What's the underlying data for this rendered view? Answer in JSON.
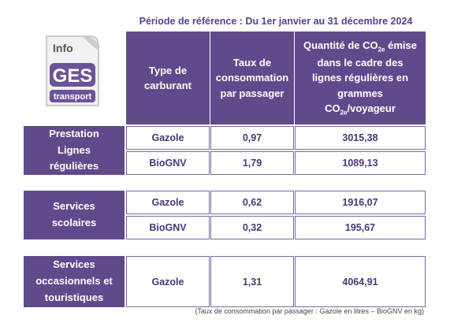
{
  "title": "Période de référence : Du 1er janvier au 31 décembre 2024",
  "logo": {
    "top": "Info",
    "main": "GES",
    "bottom": "transport"
  },
  "header": {
    "columns": [
      [
        "Type de carburant"
      ],
      [
        "Taux de consommation par passager"
      ],
      [
        "Quantité de CO",
        "2e",
        " émise dans le cadre  des lignes régulières en grammes CO",
        "2e",
        "/voyageur"
      ]
    ]
  },
  "groups": [
    {
      "label": "Prestation Lignes régulières",
      "rows": [
        [
          "Gazole",
          "0,97",
          "3015,38"
        ],
        [
          "BioGNV",
          "1,79",
          "1089,13"
        ]
      ]
    },
    {
      "label": "Services scolaires",
      "rows": [
        [
          "Gazole",
          "0,62",
          "1916,07"
        ],
        [
          "BioGNV",
          "0,32",
          "195,67"
        ]
      ]
    },
    {
      "label": "Services occasionnels et touristiques",
      "rows": [
        [
          "Gazole",
          "1,31",
          "4064,91"
        ]
      ]
    }
  ],
  "footnote": "(Taux de consommation par passager : Gazole en litres – BioGNV en kg)"
}
